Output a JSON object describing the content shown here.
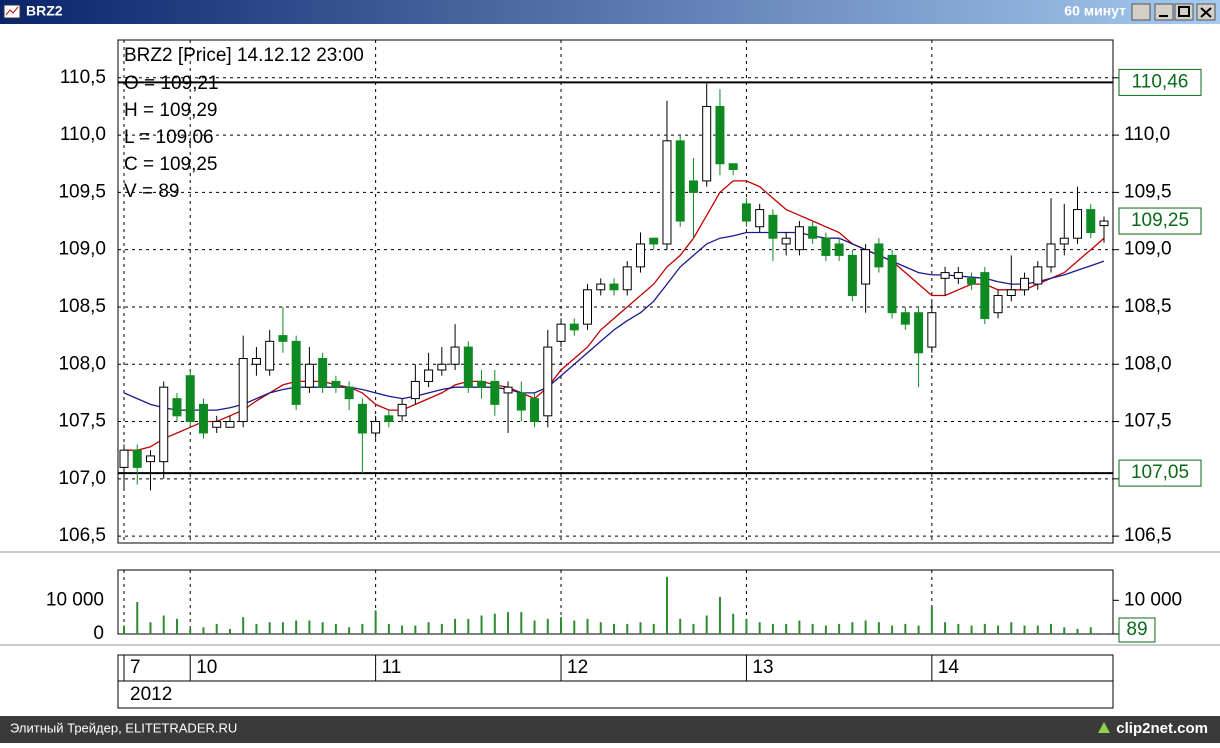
{
  "window": {
    "title": "BRZ2",
    "interval": "60 минут"
  },
  "footer": {
    "left": "Элитный Трейдер, ELITETRADER.RU",
    "right": "clip2net.com"
  },
  "chart_data": [
    {
      "type": "candlestick",
      "title": "BRZ2 [Price] 14.12.12 23:00",
      "ohlc_info": [
        "O = 109,21",
        "H = 109,29",
        "L = 109,06",
        "C = 109,25",
        "V = 89"
      ],
      "categories": [
        "7",
        null,
        null,
        null,
        null,
        "10",
        null,
        null,
        null,
        null,
        null,
        null,
        null,
        null,
        null,
        null,
        null,
        null,
        null,
        "11",
        null,
        null,
        null,
        null,
        null,
        null,
        null,
        null,
        null,
        null,
        null,
        null,
        null,
        "12",
        null,
        null,
        null,
        null,
        null,
        null,
        null,
        null,
        null,
        null,
        null,
        null,
        null,
        "13",
        null,
        null,
        null,
        null,
        null,
        null,
        null,
        null,
        null,
        null,
        null,
        null,
        null,
        "14",
        null,
        null,
        null,
        null,
        null,
        null,
        null,
        null,
        null,
        null,
        null,
        null,
        null
      ],
      "year": "2012",
      "open": [
        107.1,
        107.25,
        107.15,
        107.15,
        107.7,
        107.9,
        107.65,
        107.45,
        107.45,
        107.5,
        108.0,
        107.95,
        108.25,
        108.2,
        107.8,
        108.05,
        107.85,
        107.8,
        107.65,
        107.4,
        107.55,
        107.55,
        107.7,
        107.85,
        107.95,
        108.0,
        108.15,
        107.85,
        107.85,
        107.75,
        107.75,
        107.7,
        107.55,
        108.2,
        108.35,
        108.35,
        108.65,
        108.7,
        108.65,
        108.85,
        109.1,
        109.05,
        109.95,
        109.6,
        109.6,
        110.25,
        109.75,
        109.4,
        109.2,
        109.3,
        109.05,
        109.0,
        109.2,
        109.1,
        109.05,
        108.95,
        108.7,
        109.05,
        108.95,
        108.45,
        108.45,
        108.15,
        108.75,
        108.75,
        108.75,
        108.8,
        108.45,
        108.6,
        108.65,
        108.7,
        108.85,
        109.05,
        109.1,
        109.35,
        109.21
      ],
      "high": [
        107.3,
        107.3,
        107.25,
        107.85,
        107.75,
        107.95,
        107.7,
        107.55,
        107.55,
        108.25,
        108.15,
        108.3,
        108.5,
        108.25,
        108.15,
        108.1,
        107.9,
        107.85,
        107.7,
        107.55,
        107.6,
        107.7,
        108.0,
        108.1,
        108.15,
        108.35,
        108.2,
        107.95,
        107.95,
        107.85,
        107.85,
        107.75,
        108.3,
        108.4,
        108.4,
        108.7,
        108.75,
        108.75,
        108.9,
        109.15,
        109.1,
        110.3,
        110.0,
        109.8,
        110.45,
        110.4,
        109.75,
        109.45,
        109.4,
        109.35,
        109.15,
        109.25,
        109.25,
        109.15,
        109.1,
        109.0,
        109.05,
        109.1,
        109.0,
        108.5,
        108.5,
        108.55,
        108.85,
        108.85,
        108.8,
        108.85,
        108.65,
        108.95,
        108.8,
        108.9,
        109.45,
        109.4,
        109.55,
        109.4,
        109.29
      ],
      "low": [
        106.9,
        106.95,
        106.9,
        107.0,
        107.5,
        107.45,
        107.35,
        107.4,
        107.45,
        107.45,
        107.9,
        107.9,
        108.1,
        107.6,
        107.75,
        107.75,
        107.75,
        107.6,
        107.05,
        107.35,
        107.45,
        107.5,
        107.65,
        107.8,
        107.9,
        107.95,
        107.75,
        107.7,
        107.55,
        107.4,
        107.5,
        107.45,
        107.45,
        108.15,
        108.25,
        108.3,
        108.6,
        108.6,
        108.6,
        108.8,
        109.0,
        109.0,
        109.2,
        109.1,
        109.55,
        109.65,
        109.65,
        109.2,
        109.15,
        108.9,
        108.95,
        108.95,
        109.05,
        108.9,
        108.9,
        108.55,
        108.45,
        108.8,
        108.4,
        108.3,
        107.8,
        108.1,
        108.6,
        108.7,
        108.65,
        108.35,
        108.4,
        108.55,
        108.6,
        108.65,
        108.8,
        108.95,
        109.05,
        109.1,
        109.06
      ],
      "close": [
        107.25,
        107.1,
        107.2,
        107.8,
        107.55,
        107.5,
        107.4,
        107.5,
        107.5,
        108.05,
        108.05,
        108.2,
        108.2,
        107.65,
        108.0,
        107.8,
        107.8,
        107.7,
        107.4,
        107.5,
        107.5,
        107.65,
        107.85,
        107.95,
        108.0,
        108.15,
        107.8,
        107.8,
        107.65,
        107.8,
        107.6,
        107.5,
        108.15,
        108.35,
        108.3,
        108.65,
        108.7,
        108.65,
        108.85,
        109.05,
        109.05,
        109.95,
        109.25,
        109.5,
        110.25,
        109.75,
        109.7,
        109.25,
        109.35,
        109.1,
        109.1,
        109.2,
        109.1,
        108.95,
        108.95,
        108.6,
        109.0,
        108.85,
        108.45,
        108.35,
        108.1,
        108.45,
        108.8,
        108.8,
        108.7,
        108.4,
        108.6,
        108.65,
        108.75,
        108.85,
        109.05,
        109.1,
        109.35,
        109.15,
        109.25
      ],
      "up_color": "#ffffff",
      "down_color": "#0f8a22",
      "overlays": [
        {
          "color": "#c00000",
          "values": [
            107.25,
            107.25,
            107.28,
            107.35,
            107.4,
            107.45,
            107.5,
            107.5,
            107.55,
            107.6,
            107.68,
            107.75,
            107.82,
            107.85,
            107.85,
            107.85,
            107.82,
            107.8,
            107.75,
            107.65,
            107.6,
            107.6,
            107.65,
            107.7,
            107.75,
            107.82,
            107.85,
            107.85,
            107.82,
            107.8,
            107.75,
            107.7,
            107.8,
            107.95,
            108.05,
            108.15,
            108.3,
            108.4,
            108.5,
            108.6,
            108.7,
            108.85,
            108.95,
            109.1,
            109.3,
            109.5,
            109.6,
            109.6,
            109.55,
            109.45,
            109.35,
            109.3,
            109.25,
            109.2,
            109.15,
            109.05,
            109.0,
            108.95,
            108.9,
            108.8,
            108.7,
            108.6,
            108.6,
            108.65,
            108.7,
            108.7,
            108.65,
            108.65,
            108.65,
            108.7,
            108.75,
            108.8,
            108.9,
            109.0,
            109.1
          ]
        },
        {
          "color": "#1a1a8c",
          "values": [
            107.75,
            107.7,
            107.65,
            107.62,
            107.6,
            107.6,
            107.6,
            107.6,
            107.62,
            107.65,
            107.7,
            107.75,
            107.78,
            107.8,
            107.8,
            107.8,
            107.8,
            107.8,
            107.78,
            107.75,
            107.72,
            107.7,
            107.72,
            107.75,
            107.78,
            107.8,
            107.8,
            107.8,
            107.8,
            107.78,
            107.75,
            107.75,
            107.8,
            107.9,
            108.0,
            108.1,
            108.2,
            108.3,
            108.38,
            108.45,
            108.55,
            108.7,
            108.85,
            108.95,
            109.05,
            109.1,
            109.12,
            109.15,
            109.15,
            109.15,
            109.15,
            109.15,
            109.12,
            109.1,
            109.1,
            109.05,
            109.0,
            108.95,
            108.9,
            108.85,
            108.8,
            108.78,
            108.78,
            108.77,
            108.76,
            108.75,
            108.72,
            108.7,
            108.7,
            108.72,
            108.75,
            108.78,
            108.82,
            108.86,
            108.9
          ]
        }
      ],
      "markers": [
        {
          "value": 110.46,
          "label": "110,46",
          "line": true
        },
        {
          "value": 109.25,
          "label": "109,25",
          "line": false
        },
        {
          "value": 107.05,
          "label": "107,05",
          "line": true
        }
      ],
      "ylim": [
        106.44,
        110.83
      ],
      "yticks": [
        {
          "value": 106.5,
          "label": "106,5"
        },
        {
          "value": 107.0,
          "label": "107,0"
        },
        {
          "value": 107.5,
          "label": "107,5"
        },
        {
          "value": 108.0,
          "label": "108,0"
        },
        {
          "value": 108.5,
          "label": "108,5"
        },
        {
          "value": 109.0,
          "label": "109,0"
        },
        {
          "value": 109.5,
          "label": "109,5"
        },
        {
          "value": 110.0,
          "label": "110,0"
        },
        {
          "value": 110.5,
          "label": "110,5"
        }
      ],
      "grid": true
    },
    {
      "type": "bar",
      "color": "#2e8b2e",
      "values": [
        2500,
        9500,
        3500,
        5500,
        4500,
        1500,
        2000,
        3000,
        1500,
        5000,
        3000,
        3500,
        3500,
        4000,
        4000,
        3500,
        3000,
        2000,
        3000,
        7000,
        3000,
        2500,
        2500,
        3500,
        3000,
        4500,
        4500,
        5500,
        6000,
        6500,
        6500,
        4000,
        4500,
        5000,
        4000,
        4500,
        3500,
        3000,
        3000,
        3500,
        3000,
        17000,
        4500,
        3000,
        5500,
        11000,
        6000,
        4500,
        3500,
        3000,
        3000,
        4000,
        3000,
        2500,
        3000,
        3500,
        4000,
        3500,
        2500,
        3000,
        2500,
        8000,
        3500,
        3000,
        2500,
        3000,
        2500,
        3500,
        2500,
        2500,
        3000,
        2000,
        1500,
        2000,
        89
      ],
      "ylim": [
        0,
        19000
      ],
      "yticks": [
        0,
        {
          "value": 10000,
          "label": "10 000"
        }
      ]
    }
  ]
}
